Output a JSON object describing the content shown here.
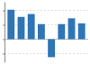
{
  "chart_data": {
    "type": "bar",
    "categories": [
      null,
      null,
      null,
      null,
      null,
      null,
      null,
      null
    ],
    "values": [
      20.5,
      15.5,
      17.5,
      10.5,
      -12.5,
      10.5,
      14.5,
      11.0
    ],
    "color": "#2e75b6",
    "ylim": [
      -16,
      26
    ],
    "yticks": [
      -10,
      0,
      10,
      20
    ],
    "grid": true,
    "tick_labels": false
  }
}
